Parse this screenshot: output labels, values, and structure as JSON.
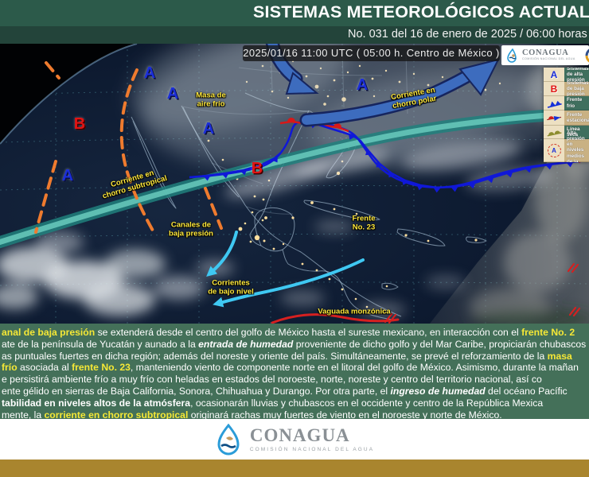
{
  "header": {
    "title": "SISTEMAS METEOROLÓGICOS ACTUALES",
    "subtitle": "No. 031 del 16 de enero de 2025 / 06:00 horas"
  },
  "map": {
    "timestamp": "2025/01/16 11:00 UTC ( 05:00 h. Centro de México )",
    "markers": {
      "high": "A",
      "low": "B"
    },
    "labels": {
      "cold_air_mass": [
        "Masa de",
        "aire frío"
      ],
      "polar_jet": [
        "Corriente en",
        "chorro polar"
      ],
      "subtropical_jet": [
        "Corriente en",
        "chorro subtropical"
      ],
      "channels": [
        "Canales de",
        "baja presión"
      ],
      "low_level": [
        "Corrientes",
        "de bajo nivel"
      ],
      "monsoon_trough": "Vaguada monzónica",
      "front": [
        "Frente",
        "No. 23"
      ]
    },
    "legend": {
      "items": [
        {
          "symbol": "high-pressure-A",
          "label": "Sistemas de alta presión"
        },
        {
          "symbol": "low-pressure-B",
          "label": "Sistemas de baja presión"
        },
        {
          "symbol": "cold-front",
          "label": "Frente frío"
        },
        {
          "symbol": "stationary-front",
          "label": "Frente estacionario"
        },
        {
          "symbol": "dry-line",
          "label": "Línea seca"
        },
        {
          "symbol": "mid-level-high",
          "label": "Alta presión en niveles medios de la atmósfera"
        }
      ]
    }
  },
  "logo_small": {
    "brand": "CONAGUA",
    "tagline": "COMISIÓN NACIONAL DEL AGUA"
  },
  "footer": {
    "brand": "CONAGUA",
    "tagline": "COMISIÓN NACIONAL DEL AGUA"
  },
  "summary": {
    "lines": [
      [
        {
          "t": "anal de baja presión",
          "s": "y"
        },
        {
          "t": " se extenderá desde el centro del golfo de México hasta el sureste mexicano, en interacción con el ",
          "s": "n"
        },
        {
          "t": "frente No. 2",
          "s": "y"
        }
      ],
      [
        {
          "t": "ate de la península de Yucatán y aunado a la ",
          "s": "n"
        },
        {
          "t": "entrada de humedad",
          "s": "bi"
        },
        {
          "t": " proveniente de dicho golfo y del Mar Caribe, propiciarán chubascos",
          "s": "n"
        }
      ],
      [
        {
          "t": "as puntuales fuertes en dicha región; además del noreste y oriente del país. Simultáneamente, se prevé el reforzamiento de la ",
          "s": "n"
        },
        {
          "t": "masa",
          "s": "y"
        }
      ],
      [
        {
          "t": "frío",
          "s": "y"
        },
        {
          "t": " asociada al ",
          "s": "n"
        },
        {
          "t": "frente No. 23",
          "s": "y"
        },
        {
          "t": ", manteniendo viento de componente norte en el litoral del golfo de México. Asimismo, durante la mañan",
          "s": "n"
        }
      ],
      [
        {
          "t": "e persistirá ambiente frío a muy frío con heladas en estados del noroeste, norte, noreste y centro del territorio nacional, así co",
          "s": "n"
        }
      ],
      [
        {
          "t": "ente gélido en sierras de Baja California, Sonora, Chihuahua y Durango. Por otra parte, el ",
          "s": "n"
        },
        {
          "t": "ingreso de humedad",
          "s": "bi"
        },
        {
          "t": " del océano Pacífic",
          "s": "n"
        }
      ],
      [
        {
          "t": "tabilidad en niveles altos de la atmósfera",
          "s": "b"
        },
        {
          "t": ", ocasionarán lluvias y chubascos en el occidente y centro de la República Mexica",
          "s": "n"
        }
      ],
      [
        {
          "t": "mente, la ",
          "s": "n"
        },
        {
          "t": "corriente en chorro subtropical",
          "s": "y"
        },
        {
          "t": " originará rachas muy fuertes de viento en el noroeste y norte de México.",
          "s": "n"
        }
      ]
    ]
  },
  "colors": {
    "header_green": "#2c5a4a",
    "panel_green": "#447059",
    "gold_band": "#a9852e",
    "highlight_yellow": "#f5e836",
    "high_marker_blue": "#1b2ed8",
    "low_marker_red": "#e21313",
    "cold_front_blue": "#1018d8",
    "subtropical_jet_teal": "#2f9a95",
    "polar_jet_blue": "#3d6cbe",
    "low_level_cyan": "#3fc8f2",
    "trough_orange": "#ef7b2e",
    "monsoon_trough_red": "#d42020"
  }
}
